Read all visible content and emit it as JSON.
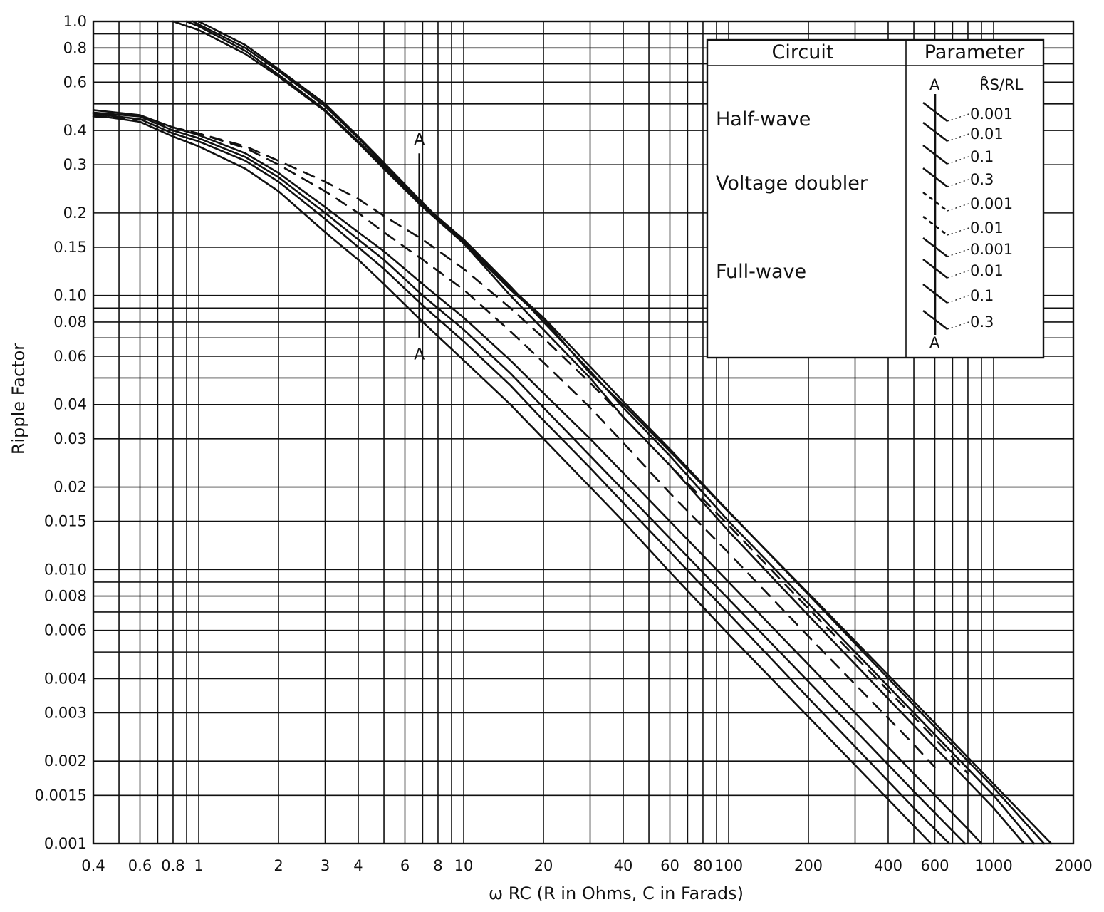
{
  "chart_data": {
    "type": "line",
    "xlabel": "ω RC (R in Ohms, C in Farads)",
    "ylabel": "Ripple Factor",
    "x_scale": "log",
    "y_scale": "log",
    "xlim": [
      0.4,
      2000
    ],
    "ylim": [
      0.001,
      1.0
    ],
    "grid": true,
    "x_ticks": [
      {
        "value": 0.4,
        "label": "0.4"
      },
      {
        "value": 0.6,
        "label": "0.6"
      },
      {
        "value": 0.8,
        "label": "0.8"
      },
      {
        "value": 1,
        "label": "1"
      },
      {
        "value": 2,
        "label": "2"
      },
      {
        "value": 3,
        "label": "3"
      },
      {
        "value": 4,
        "label": "4"
      },
      {
        "value": 6,
        "label": "6"
      },
      {
        "value": 8,
        "label": "8"
      },
      {
        "value": 10,
        "label": "10"
      },
      {
        "value": 20,
        "label": "20"
      },
      {
        "value": 40,
        "label": "40"
      },
      {
        "value": 60,
        "label": "60"
      },
      {
        "value": 80,
        "label": "80"
      },
      {
        "value": 100,
        "label": "100"
      },
      {
        "value": 200,
        "label": "200"
      },
      {
        "value": 400,
        "label": "400"
      },
      {
        "value": 600,
        "label": "600"
      },
      {
        "value": 1000,
        "label": "1000"
      },
      {
        "value": 2000,
        "label": "2000"
      }
    ],
    "y_ticks": [
      {
        "value": 1.0,
        "label": "1.0"
      },
      {
        "value": 0.8,
        "label": "0.8"
      },
      {
        "value": 0.6,
        "label": "0.6"
      },
      {
        "value": 0.4,
        "label": "0.4"
      },
      {
        "value": 0.3,
        "label": "0.3"
      },
      {
        "value": 0.2,
        "label": "0.2"
      },
      {
        "value": 0.15,
        "label": "0.15"
      },
      {
        "value": 0.1,
        "label": "0.10"
      },
      {
        "value": 0.08,
        "label": "0.08"
      },
      {
        "value": 0.06,
        "label": "0.06"
      },
      {
        "value": 0.04,
        "label": "0.04"
      },
      {
        "value": 0.03,
        "label": "0.03"
      },
      {
        "value": 0.02,
        "label": "0.02"
      },
      {
        "value": 0.015,
        "label": "0.015"
      },
      {
        "value": 0.01,
        "label": "0.010"
      },
      {
        "value": 0.008,
        "label": "0.008"
      },
      {
        "value": 0.006,
        "label": "0.006"
      },
      {
        "value": 0.004,
        "label": "0.004"
      },
      {
        "value": 0.003,
        "label": "0.003"
      },
      {
        "value": 0.002,
        "label": "0.002"
      },
      {
        "value": 0.0015,
        "label": "0.0015"
      },
      {
        "value": 0.001,
        "label": "0.001"
      }
    ],
    "x_gridlines": [
      0.4,
      0.5,
      0.6,
      0.7,
      0.8,
      0.9,
      1,
      2,
      3,
      4,
      5,
      6,
      7,
      8,
      9,
      10,
      20,
      30,
      40,
      50,
      60,
      70,
      80,
      90,
      100,
      200,
      300,
      400,
      500,
      600,
      700,
      800,
      900,
      1000,
      2000
    ],
    "y_gridlines": [
      1.0,
      0.9,
      0.8,
      0.7,
      0.6,
      0.5,
      0.4,
      0.3,
      0.2,
      0.15,
      0.1,
      0.09,
      0.08,
      0.07,
      0.06,
      0.05,
      0.04,
      0.03,
      0.02,
      0.015,
      0.01,
      0.009,
      0.008,
      0.007,
      0.006,
      0.005,
      0.004,
      0.003,
      0.002,
      0.0015,
      0.001
    ],
    "legend_placement": "top-right",
    "legend": {
      "circuit_header": "Circuit",
      "parameter_header": "Parameter",
      "parameter_symbol": "R̂S/RL",
      "marker": "A",
      "groups": [
        {
          "circuit": "Half-wave",
          "parameters": [
            "0.001",
            "0.01",
            "0.1",
            "0.3"
          ],
          "style": "solid"
        },
        {
          "circuit": "Voltage doubler",
          "parameters": [
            "0.001",
            "0.01"
          ],
          "style": "dashed"
        },
        {
          "circuit": "Full-wave",
          "parameters": [
            "0.001",
            "0.01",
            "0.1",
            "0.3"
          ],
          "style": "solid"
        }
      ]
    },
    "annotations": [
      {
        "label": "A",
        "x": 6.8,
        "y_from": 0.07,
        "y_to": 0.33
      }
    ],
    "series": [
      {
        "group": "Half-wave",
        "param": "0.001",
        "style": "solid",
        "points": [
          [
            0.8,
            1.0
          ],
          [
            1,
            0.93
          ],
          [
            1.5,
            0.76
          ],
          [
            2,
            0.63
          ],
          [
            3,
            0.47
          ],
          [
            4,
            0.36
          ],
          [
            5,
            0.29
          ],
          [
            7,
            0.21
          ],
          [
            10,
            0.155
          ],
          [
            15,
            0.105
          ],
          [
            20,
            0.082
          ],
          [
            30,
            0.052
          ],
          [
            40,
            0.04
          ],
          [
            60,
            0.027
          ],
          [
            100,
            0.0162
          ],
          [
            200,
            0.0082
          ],
          [
            500,
            0.0033
          ],
          [
            1000,
            0.00165
          ],
          [
            1650,
            0.001
          ]
        ]
      },
      {
        "group": "Half-wave",
        "param": "0.01",
        "style": "solid",
        "points": [
          [
            0.9,
            1.0
          ],
          [
            1,
            0.96
          ],
          [
            1.5,
            0.78
          ],
          [
            2,
            0.64
          ],
          [
            3,
            0.475
          ],
          [
            4,
            0.365
          ],
          [
            5,
            0.295
          ],
          [
            7,
            0.213
          ],
          [
            10,
            0.158
          ],
          [
            15,
            0.107
          ],
          [
            20,
            0.083
          ],
          [
            30,
            0.055
          ],
          [
            40,
            0.041
          ],
          [
            60,
            0.0275
          ],
          [
            100,
            0.0163
          ],
          [
            200,
            0.0081
          ],
          [
            500,
            0.0032
          ],
          [
            1000,
            0.0016
          ],
          [
            1550,
            0.001
          ]
        ]
      },
      {
        "group": "Half-wave",
        "param": "0.1",
        "style": "solid",
        "points": [
          [
            0.95,
            1.0
          ],
          [
            1.5,
            0.8
          ],
          [
            2,
            0.66
          ],
          [
            3,
            0.49
          ],
          [
            4,
            0.375
          ],
          [
            5,
            0.3
          ],
          [
            7,
            0.215
          ],
          [
            10,
            0.16
          ],
          [
            15,
            0.108
          ],
          [
            20,
            0.08
          ],
          [
            30,
            0.053
          ],
          [
            40,
            0.039
          ],
          [
            60,
            0.026
          ],
          [
            100,
            0.015
          ],
          [
            200,
            0.0075
          ],
          [
            500,
            0.003
          ],
          [
            1000,
            0.0015
          ],
          [
            1420,
            0.001
          ]
        ]
      },
      {
        "group": "Half-wave",
        "param": "0.3",
        "style": "solid",
        "points": [
          [
            1,
            1.0
          ],
          [
            1.5,
            0.82
          ],
          [
            2,
            0.67
          ],
          [
            3,
            0.5
          ],
          [
            4,
            0.38
          ],
          [
            5,
            0.305
          ],
          [
            7,
            0.218
          ],
          [
            10,
            0.155
          ],
          [
            15,
            0.1
          ],
          [
            20,
            0.075
          ],
          [
            30,
            0.05
          ],
          [
            40,
            0.036
          ],
          [
            60,
            0.024
          ],
          [
            100,
            0.0138
          ],
          [
            200,
            0.0068
          ],
          [
            500,
            0.0027
          ],
          [
            1000,
            0.00135
          ],
          [
            1300,
            0.001
          ]
        ]
      },
      {
        "group": "Voltage doubler",
        "param": "0.001",
        "style": "dashed",
        "points": [
          [
            0.4,
            0.45
          ],
          [
            0.6,
            0.44
          ],
          [
            0.8,
            0.41
          ],
          [
            1,
            0.39
          ],
          [
            1.5,
            0.35
          ],
          [
            2,
            0.31
          ],
          [
            3,
            0.26
          ],
          [
            4,
            0.225
          ],
          [
            5,
            0.195
          ],
          [
            7,
            0.16
          ],
          [
            10,
            0.125
          ],
          [
            15,
            0.09
          ],
          [
            20,
            0.07
          ],
          [
            30,
            0.048
          ],
          [
            40,
            0.036
          ],
          [
            60,
            0.024
          ],
          [
            100,
            0.0145
          ],
          [
            200,
            0.0072
          ],
          [
            500,
            0.0029
          ],
          [
            800,
            0.0018
          ]
        ]
      },
      {
        "group": "Voltage doubler",
        "param": "0.01",
        "style": "dashed",
        "points": [
          [
            0.8,
            0.41
          ],
          [
            1,
            0.39
          ],
          [
            1.5,
            0.345
          ],
          [
            2,
            0.3
          ],
          [
            3,
            0.24
          ],
          [
            4,
            0.2
          ],
          [
            5,
            0.17
          ],
          [
            7,
            0.135
          ],
          [
            10,
            0.105
          ],
          [
            15,
            0.074
          ],
          [
            20,
            0.057
          ],
          [
            30,
            0.039
          ],
          [
            40,
            0.029
          ],
          [
            60,
            0.019
          ],
          [
            100,
            0.0115
          ],
          [
            200,
            0.0057
          ],
          [
            500,
            0.0023
          ],
          [
            600,
            0.0019
          ]
        ]
      },
      {
        "group": "Full-wave",
        "param": "0.001",
        "style": "solid",
        "points": [
          [
            0.4,
            0.475
          ],
          [
            0.6,
            0.455
          ],
          [
            0.8,
            0.41
          ],
          [
            1,
            0.385
          ],
          [
            1.5,
            0.33
          ],
          [
            2,
            0.28
          ],
          [
            3,
            0.21
          ],
          [
            4,
            0.17
          ],
          [
            5,
            0.145
          ],
          [
            7,
            0.11
          ],
          [
            10,
            0.083
          ],
          [
            15,
            0.058
          ],
          [
            20,
            0.044
          ],
          [
            30,
            0.03
          ],
          [
            40,
            0.0225
          ],
          [
            60,
            0.015
          ],
          [
            100,
            0.009
          ],
          [
            200,
            0.0045
          ],
          [
            500,
            0.0018
          ],
          [
            800,
            0.00113
          ],
          [
            900,
            0.001
          ]
        ]
      },
      {
        "group": "Full-wave",
        "param": "0.01",
        "style": "solid",
        "points": [
          [
            0.4,
            0.465
          ],
          [
            0.6,
            0.45
          ],
          [
            0.8,
            0.4
          ],
          [
            1,
            0.375
          ],
          [
            1.5,
            0.32
          ],
          [
            2,
            0.27
          ],
          [
            3,
            0.2
          ],
          [
            4,
            0.16
          ],
          [
            5,
            0.135
          ],
          [
            7,
            0.1
          ],
          [
            10,
            0.075
          ],
          [
            15,
            0.052
          ],
          [
            20,
            0.039
          ],
          [
            30,
            0.026
          ],
          [
            40,
            0.0195
          ],
          [
            60,
            0.013
          ],
          [
            100,
            0.0078
          ],
          [
            200,
            0.0039
          ],
          [
            500,
            0.00155
          ],
          [
            780,
            0.001
          ]
        ]
      },
      {
        "group": "Full-wave",
        "param": "0.1",
        "style": "solid",
        "points": [
          [
            0.4,
            0.46
          ],
          [
            0.6,
            0.44
          ],
          [
            0.8,
            0.39
          ],
          [
            1,
            0.365
          ],
          [
            1.5,
            0.31
          ],
          [
            2,
            0.26
          ],
          [
            3,
            0.19
          ],
          [
            4,
            0.15
          ],
          [
            5,
            0.125
          ],
          [
            7,
            0.092
          ],
          [
            10,
            0.068
          ],
          [
            15,
            0.047
          ],
          [
            20,
            0.035
          ],
          [
            30,
            0.0235
          ],
          [
            40,
            0.0175
          ],
          [
            60,
            0.0116
          ],
          [
            100,
            0.0069
          ],
          [
            200,
            0.0034
          ],
          [
            500,
            0.00135
          ],
          [
            680,
            0.001
          ]
        ]
      },
      {
        "group": "Full-wave",
        "param": "0.3",
        "style": "solid",
        "points": [
          [
            0.4,
            0.455
          ],
          [
            0.6,
            0.43
          ],
          [
            0.8,
            0.38
          ],
          [
            1,
            0.35
          ],
          [
            1.5,
            0.29
          ],
          [
            2,
            0.24
          ],
          [
            3,
            0.17
          ],
          [
            4,
            0.135
          ],
          [
            5,
            0.11
          ],
          [
            7,
            0.08
          ],
          [
            10,
            0.058
          ],
          [
            15,
            0.04
          ],
          [
            20,
            0.03
          ],
          [
            30,
            0.02
          ],
          [
            40,
            0.015
          ],
          [
            60,
            0.0098
          ],
          [
            100,
            0.0058
          ],
          [
            200,
            0.0029
          ],
          [
            400,
            0.00145
          ],
          [
            580,
            0.001
          ]
        ]
      }
    ]
  }
}
